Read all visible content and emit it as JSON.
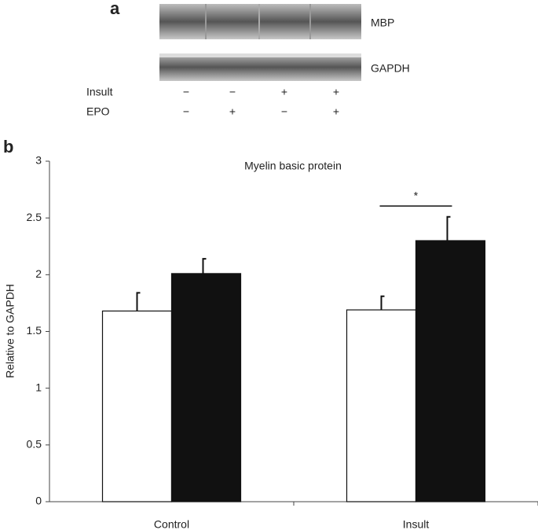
{
  "panels": [
    "a",
    "b"
  ],
  "blot": {
    "bands": [
      "MBP",
      "GAPDH"
    ],
    "conditions": [
      {
        "name": "Insult",
        "signs": [
          "−",
          "−",
          "+",
          "+"
        ]
      },
      {
        "name": "EPO",
        "signs": [
          "−",
          "+",
          "−",
          "+"
        ]
      }
    ]
  },
  "chart_data": {
    "type": "bar",
    "title": "Myelin basic protein",
    "y_label": "Relative to GAPDH",
    "categories": [
      "Control",
      "Insult"
    ],
    "series": [
      {
        "color": "#ffffff",
        "values": [
          1.68,
          1.69
        ],
        "errors": [
          0.16,
          0.12
        ]
      },
      {
        "color": "#111111",
        "values": [
          2.01,
          2.3
        ],
        "errors": [
          0.13,
          0.21
        ]
      }
    ],
    "ylim": [
      0,
      3
    ],
    "yticks": [
      0,
      0.5,
      1,
      1.5,
      2,
      2.5,
      3
    ],
    "annotations": [
      {
        "text": "*"
      }
    ]
  }
}
